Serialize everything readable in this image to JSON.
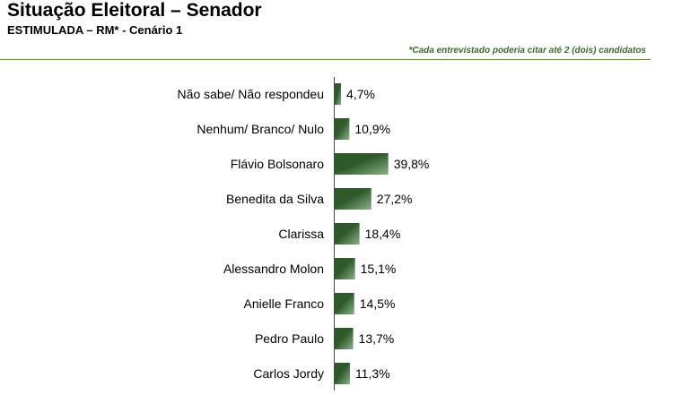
{
  "header": {
    "title": "Situação Eleitoral – Senador",
    "subtitle": "ESTIMULADA – RM* - Cenário 1",
    "footnote": "*Cada entrevistado poderia citar até 2 (dois) candidatos"
  },
  "colors": {
    "bar_dark": "#2e5a2a",
    "bar_light": "#8bb08a",
    "axis": "#4a4a4a",
    "rule": "#5c8a4a",
    "footnote": "#3d6b2d"
  },
  "chart_data": {
    "type": "bar",
    "orientation": "horizontal",
    "categories": [
      "Não sabe/ Não respondeu",
      "Nenhum/ Branco/ Nulo",
      "Flávio Bolsonaro",
      "Benedita da Silva",
      "Clarissa",
      "Alessandro Molon",
      "Anielle Franco",
      "Pedro Paulo",
      "Carlos Jordy"
    ],
    "values": [
      4.7,
      10.9,
      39.8,
      27.2,
      18.4,
      15.1,
      14.5,
      13.7,
      11.3
    ],
    "value_labels": [
      "4,7%",
      "10,9%",
      "39,8%",
      "27,2%",
      "18,4%",
      "15,1%",
      "14,5%",
      "13,7%",
      "11,3%"
    ],
    "unit": "%",
    "xlim": [
      0,
      40
    ],
    "grid": false,
    "legend": "none"
  }
}
